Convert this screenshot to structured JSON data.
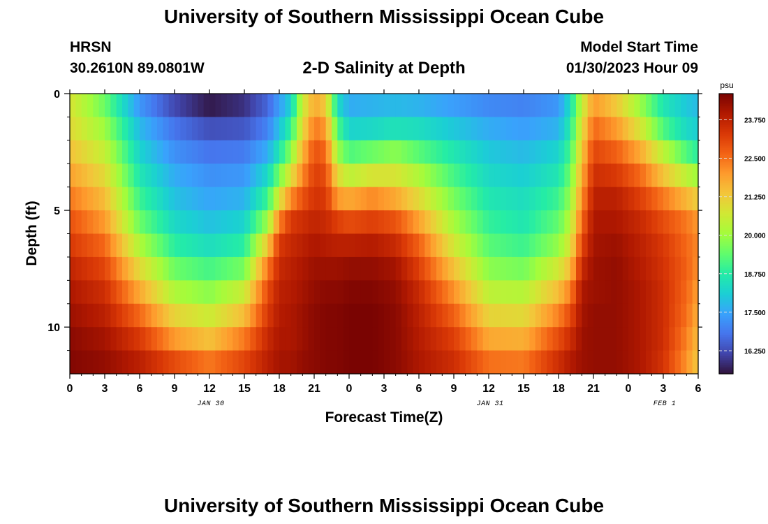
{
  "header": {
    "title": "University of Southern Mississippi Ocean Cube",
    "station": "HRSN",
    "coordinates": "30.2610N  89.0801W",
    "subtitle": "2-D Salinity at Depth",
    "model_start_label": "Model Start Time",
    "model_start_value": "01/30/2023 Hour 09"
  },
  "footer": {
    "title": "University of Southern Mississippi Ocean Cube"
  },
  "chart_data": {
    "type": "heatmap",
    "title": "2-D Salinity at Depth",
    "xlabel": "Forecast Time(Z)",
    "ylabel": "Depth (ft)",
    "x_hours_since_jan30_00z": [
      0,
      54
    ],
    "x_ticks": [
      "0",
      "3",
      "6",
      "9",
      "12",
      "15",
      "18",
      "21",
      "0",
      "3",
      "6",
      "9",
      "12",
      "15",
      "18",
      "21",
      "0",
      "3",
      "6"
    ],
    "date_labels": [
      {
        "text": "JAN 30",
        "hour": 12
      },
      {
        "text": "JAN 31",
        "hour": 36
      },
      {
        "text": "FEB 1",
        "hour": 51
      }
    ],
    "y_ticks": [
      "0",
      "5",
      "10"
    ],
    "ylim_ft": [
      0,
      12
    ],
    "depth_levels_ft": [
      0.5,
      1.5,
      2.5,
      3.5,
      4.5,
      5.5,
      6.5,
      7.5,
      8.5,
      9.5,
      10.5,
      11.5
    ],
    "colorbar": {
      "unit": "psu",
      "range": [
        15.5,
        24.6
      ],
      "ticks": [
        "23.750",
        "22.500",
        "21.250",
        "20.000",
        "18.750",
        "17.500",
        "16.250"
      ],
      "colors": [
        "#30123b",
        "#4145ab",
        "#4675ed",
        "#39a2fc",
        "#1bcfd4",
        "#24eca6",
        "#61fc6c",
        "#a4fc3b",
        "#d1e834",
        "#f3c63a",
        "#fe9b2d",
        "#f36315",
        "#d93806",
        "#b11901",
        "#7a0402"
      ]
    },
    "salinity_profiles": [
      {
        "hour": 0,
        "values": [
          20.8,
          21.0,
          21.4,
          21.9,
          22.4,
          22.9,
          23.3,
          23.7,
          24.0,
          24.2,
          24.4,
          24.5
        ]
      },
      {
        "hour": 3,
        "values": [
          19.5,
          20.0,
          20.5,
          21.0,
          21.5,
          22.0,
          22.6,
          23.1,
          23.5,
          23.8,
          24.1,
          24.3
        ]
      },
      {
        "hour": 6,
        "values": [
          17.3,
          17.8,
          18.2,
          18.6,
          19.0,
          19.5,
          20.2,
          21.0,
          21.8,
          22.6,
          23.3,
          23.8
        ]
      },
      {
        "hour": 9,
        "values": [
          16.2,
          16.8,
          17.2,
          17.6,
          17.9,
          18.3,
          18.8,
          19.5,
          20.2,
          21.1,
          22.0,
          23.0
        ]
      },
      {
        "hour": 12,
        "values": [
          15.6,
          16.3,
          16.8,
          17.2,
          17.5,
          17.9,
          18.4,
          19.1,
          19.8,
          20.6,
          21.4,
          22.4
        ]
      },
      {
        "hour": 15,
        "values": [
          15.9,
          16.4,
          16.9,
          17.3,
          17.7,
          18.2,
          18.8,
          19.6,
          20.6,
          21.5,
          22.4,
          23.1
        ]
      },
      {
        "hour": 17,
        "values": [
          16.6,
          17.0,
          17.6,
          18.3,
          19.0,
          20.0,
          21.3,
          22.4,
          23.0,
          23.3,
          23.6,
          23.8
        ]
      },
      {
        "hour": 18,
        "values": [
          17.4,
          17.9,
          18.6,
          19.6,
          20.8,
          22.3,
          23.3,
          23.6,
          23.8,
          23.9,
          24.0,
          24.1
        ]
      },
      {
        "hour": 19,
        "values": [
          18.2,
          18.9,
          19.8,
          20.9,
          22.2,
          23.3,
          23.6,
          23.8,
          23.9,
          24.0,
          24.0,
          24.1
        ]
      },
      {
        "hour": 20,
        "values": [
          20.6,
          21.0,
          21.6,
          22.2,
          22.9,
          23.5,
          23.8,
          24.0,
          24.1,
          24.2,
          24.2,
          24.3
        ]
      },
      {
        "hour": 21,
        "values": [
          21.8,
          22.4,
          22.9,
          23.2,
          23.4,
          23.7,
          24.0,
          24.2,
          24.3,
          24.4,
          24.4,
          24.4
        ]
      },
      {
        "hour": 22,
        "values": [
          21.3,
          22.0,
          22.6,
          23.0,
          23.3,
          23.6,
          23.9,
          24.2,
          24.4,
          24.5,
          24.5,
          24.5
        ]
      },
      {
        "hour": 23,
        "values": [
          18.4,
          19.2,
          20.0,
          21.0,
          22.0,
          23.2,
          23.8,
          24.2,
          24.4,
          24.5,
          24.5,
          24.5
        ]
      },
      {
        "hour": 24,
        "values": [
          17.6,
          18.2,
          19.2,
          20.4,
          21.8,
          23.0,
          23.8,
          24.3,
          24.5,
          24.6,
          24.6,
          24.6
        ]
      },
      {
        "hour": 26,
        "values": [
          17.7,
          18.3,
          19.5,
          20.8,
          22.2,
          23.2,
          23.9,
          24.3,
          24.5,
          24.6,
          24.6,
          24.6
        ]
      },
      {
        "hour": 28,
        "values": [
          17.8,
          18.5,
          19.8,
          20.8,
          21.8,
          22.9,
          23.6,
          24.1,
          24.3,
          24.4,
          24.4,
          24.4
        ]
      },
      {
        "hour": 30,
        "values": [
          17.7,
          18.4,
          19.3,
          20.2,
          21.0,
          21.9,
          22.7,
          23.2,
          23.6,
          23.8,
          23.9,
          24.0
        ]
      },
      {
        "hour": 33,
        "values": [
          17.4,
          18.0,
          18.6,
          19.1,
          19.6,
          20.1,
          20.7,
          21.4,
          22.1,
          22.7,
          23.2,
          23.5
        ]
      },
      {
        "hour": 36,
        "values": [
          17.1,
          17.6,
          18.0,
          18.3,
          18.6,
          18.9,
          19.3,
          19.8,
          20.4,
          21.1,
          21.8,
          22.5
        ]
      },
      {
        "hour": 39,
        "values": [
          17.0,
          17.4,
          17.8,
          18.1,
          18.4,
          18.6,
          19.0,
          19.6,
          20.3,
          21.0,
          21.7,
          22.4
        ]
      },
      {
        "hour": 42,
        "values": [
          17.3,
          17.7,
          18.2,
          18.6,
          19.0,
          19.4,
          19.9,
          20.7,
          21.5,
          22.3,
          23.0,
          23.5
        ]
      },
      {
        "hour": 43,
        "values": [
          18.4,
          18.7,
          19.1,
          19.5,
          19.9,
          20.3,
          20.8,
          21.5,
          22.3,
          23.0,
          23.5,
          23.9
        ]
      },
      {
        "hour": 44,
        "values": [
          20.5,
          20.9,
          21.3,
          21.7,
          22.1,
          22.6,
          23.1,
          23.6,
          24.0,
          24.1,
          24.2,
          24.2
        ]
      },
      {
        "hour": 45,
        "values": [
          22.0,
          22.6,
          23.1,
          23.5,
          23.8,
          24.0,
          24.1,
          24.2,
          24.2,
          24.3,
          24.3,
          24.3
        ]
      },
      {
        "hour": 47,
        "values": [
          21.3,
          22.0,
          22.7,
          23.3,
          23.8,
          24.0,
          24.2,
          24.3,
          24.3,
          24.3,
          24.3,
          24.3
        ]
      },
      {
        "hour": 49,
        "values": [
          20.0,
          20.8,
          21.8,
          22.6,
          23.2,
          23.6,
          23.8,
          23.9,
          24.0,
          24.0,
          24.0,
          24.0
        ]
      },
      {
        "hour": 51,
        "values": [
          18.6,
          19.2,
          20.4,
          21.4,
          22.4,
          23.0,
          23.3,
          23.4,
          23.5,
          23.5,
          23.5,
          23.4
        ]
      },
      {
        "hour": 53,
        "values": [
          18.0,
          18.3,
          19.2,
          20.4,
          21.6,
          22.4,
          22.6,
          22.7,
          22.6,
          22.5,
          22.3,
          22.1
        ]
      },
      {
        "hour": 54,
        "values": [
          17.8,
          18.1,
          18.8,
          20.0,
          21.2,
          22.0,
          22.2,
          22.1,
          21.9,
          21.7,
          21.5,
          21.3
        ]
      }
    ]
  }
}
